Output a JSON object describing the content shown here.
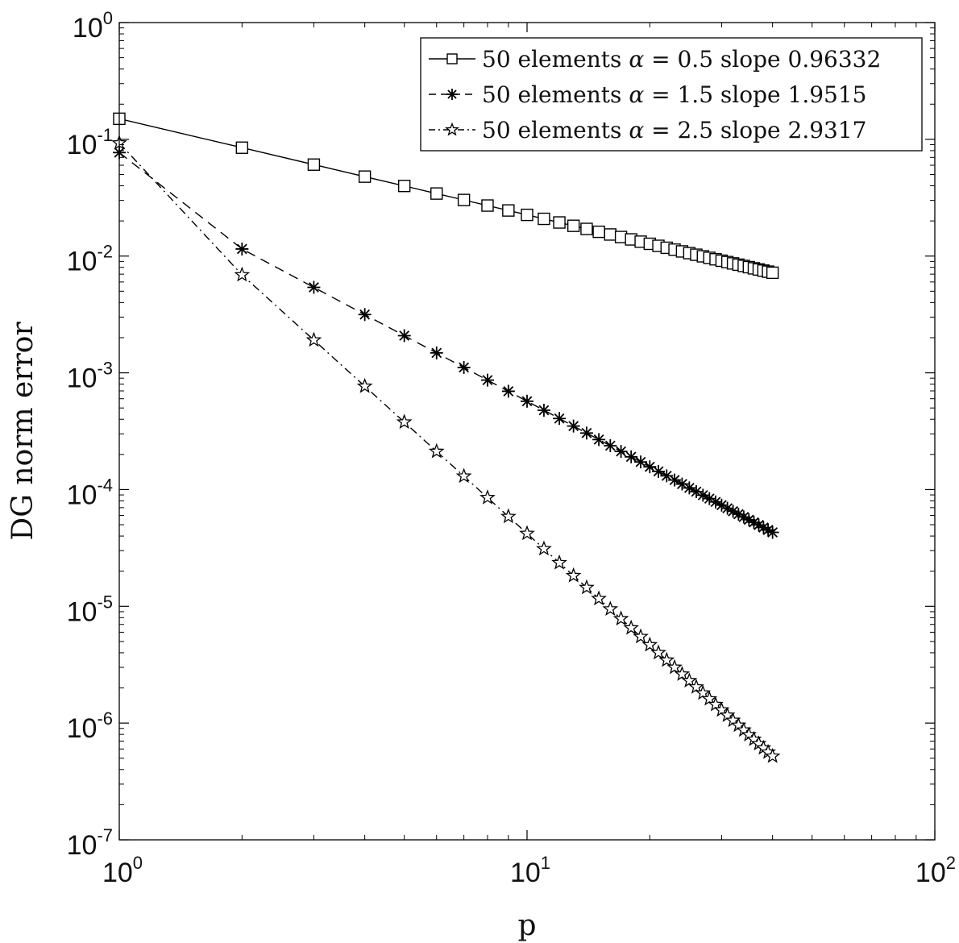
{
  "chart_data": {
    "type": "line",
    "title": "",
    "xlabel": "p",
    "ylabel": "DG norm error",
    "xscale": "log",
    "yscale": "log",
    "xlim": [
      1,
      100
    ],
    "ylim": [
      1e-07,
      1
    ],
    "grid": false,
    "legend_position": "top-right",
    "x_ticks": [
      {
        "value": 1,
        "base": "10",
        "exp": "0"
      },
      {
        "value": 10,
        "base": "10",
        "exp": "1"
      },
      {
        "value": 100,
        "base": "10",
        "exp": "2"
      }
    ],
    "y_ticks": [
      {
        "value": 1,
        "base": "10",
        "exp": "0"
      },
      {
        "value": 0.1,
        "base": "10",
        "exp": "-1"
      },
      {
        "value": 0.01,
        "base": "10",
        "exp": "-2"
      },
      {
        "value": 0.001,
        "base": "10",
        "exp": "-3"
      },
      {
        "value": 0.0001,
        "base": "10",
        "exp": "-4"
      },
      {
        "value": 1e-05,
        "base": "10",
        "exp": "-5"
      },
      {
        "value": 1e-06,
        "base": "10",
        "exp": "-6"
      },
      {
        "value": 1e-07,
        "base": "10",
        "exp": "-7"
      }
    ],
    "series": [
      {
        "name": "50 elements α = 0.5 slope 0.96332",
        "legend_parts": [
          "50 elements ",
          "α",
          " = 0.5 slope 0.96332"
        ],
        "marker": "square",
        "line_style": "solid",
        "x_range": [
          1,
          40
        ],
        "y_at_start": 0.15,
        "y_at_end": 0.0072
      },
      {
        "name": "50 elements α = 1.5 slope 1.9515",
        "legend_parts": [
          "50 elements ",
          "α",
          " = 1.5 slope 1.9515"
        ],
        "marker": "asterisk",
        "line_style": "dashed",
        "x_range": [
          1,
          40
        ],
        "y_at_start": 0.077,
        "y_at_second": 0.0115,
        "y_at_end": 4.3e-05
      },
      {
        "name": "50 elements α = 2.5 slope 2.9317",
        "legend_parts": [
          "50 elements ",
          "α",
          " = 2.5 slope 2.9317"
        ],
        "marker": "star",
        "line_style": "dashdot",
        "x_range": [
          1,
          40
        ],
        "y_at_start": 0.093,
        "y_at_second": 0.0069,
        "y_at_end": 5.2e-07
      }
    ]
  }
}
